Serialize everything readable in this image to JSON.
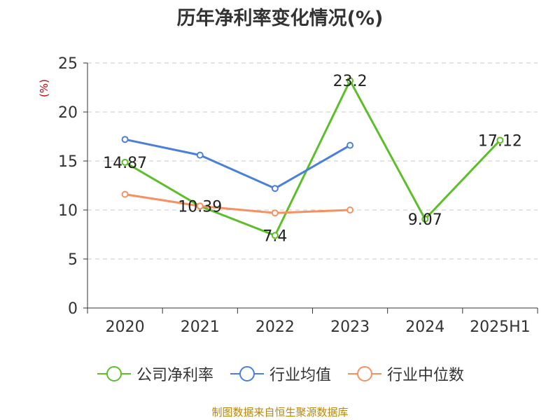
{
  "chart_data": {
    "type": "line",
    "title": "历年净利率变化情况(%)",
    "ylabel": "(%)",
    "categories": [
      "2020",
      "2021",
      "2022",
      "2023",
      "2024",
      "2025H1"
    ],
    "ylim": [
      0,
      25
    ],
    "yticks": [
      0,
      5,
      10,
      15,
      20,
      25
    ],
    "grid": true,
    "legend_position": "bottom",
    "series": [
      {
        "name": "公司净利率",
        "color": "#5cbf2a",
        "values": [
          14.87,
          10.39,
          7.4,
          23.2,
          9.07,
          17.12
        ],
        "labels": [
          "14.87",
          "10.39",
          "7.4",
          "23.2",
          "9.07",
          "17.12"
        ]
      },
      {
        "name": "行业均值",
        "color": "#4a7fdb",
        "values": [
          17.2,
          15.6,
          12.2,
          16.6,
          null,
          null
        ]
      },
      {
        "name": "行业中位数",
        "color": "#f79060",
        "values": [
          11.6,
          10.4,
          9.7,
          10.0,
          null,
          null
        ]
      }
    ]
  },
  "footer": {
    "source": "制图数据来自恒生聚源数据库"
  }
}
